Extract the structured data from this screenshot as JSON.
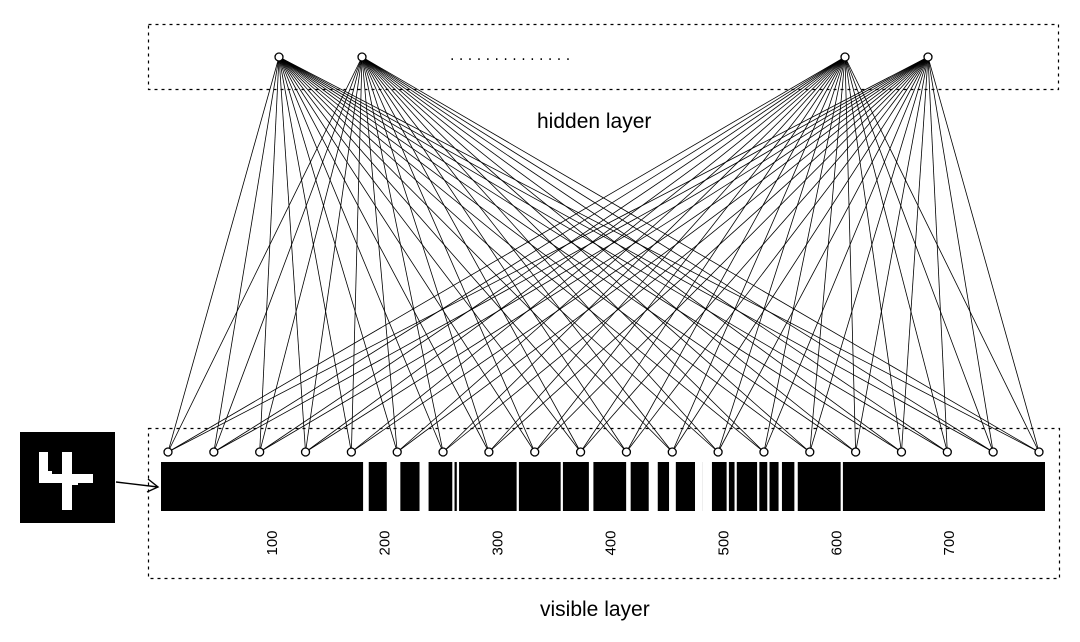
{
  "labels": {
    "hidden_layer": "hidden layer",
    "visible_layer": "visible layer",
    "ellipsis": ". . . . . . . . . . . . . ."
  },
  "digit_image": {
    "digit": "4",
    "background": "#000000",
    "foreground": "#ffffff"
  },
  "hidden_layer": {
    "units_shown": 4,
    "gap": "ellipsis"
  },
  "visible_layer": {
    "units_shown": 20,
    "pixel_count": 784
  },
  "axis": {
    "ticks": [
      100,
      200,
      300,
      400,
      500,
      600,
      700
    ],
    "tick_labels": [
      "100",
      "200",
      "300",
      "400",
      "500",
      "600",
      "700"
    ],
    "range": [
      1,
      784
    ]
  },
  "pixel_strip": {
    "background": "#000000",
    "gaps_color": "#ffffff",
    "white_intervals": [
      [
        180,
        185
      ],
      [
        201,
        213
      ],
      [
        230,
        238
      ],
      [
        259,
        261
      ],
      [
        263,
        265
      ],
      [
        316,
        318
      ],
      [
        355,
        357
      ],
      [
        380,
        384
      ],
      [
        413,
        417
      ],
      [
        433,
        441
      ],
      [
        451,
        457
      ],
      [
        474,
        481
      ],
      [
        481,
        489
      ],
      [
        502,
        504
      ],
      [
        509,
        511
      ],
      [
        529,
        531
      ],
      [
        538,
        540
      ],
      [
        548,
        551
      ],
      [
        562,
        565
      ],
      [
        603,
        605
      ]
    ]
  },
  "colors": {
    "line": "#000000",
    "node_fill": "#ffffff",
    "background": "#ffffff"
  }
}
